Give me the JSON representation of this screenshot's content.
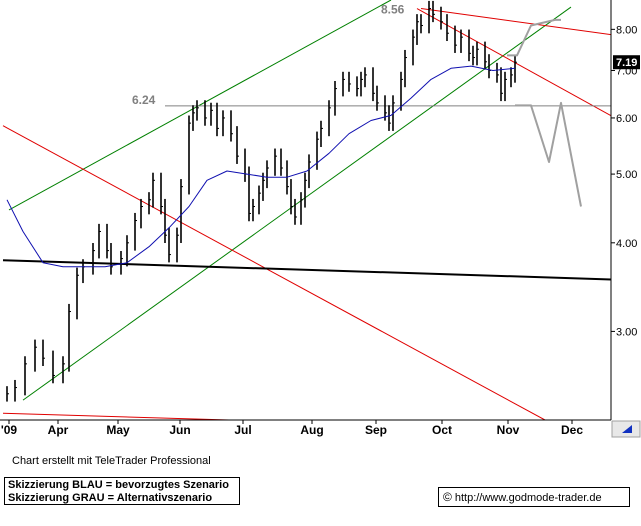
{
  "chart_data": {
    "type": "line",
    "title": "",
    "xlabel": "",
    "ylabel": "",
    "x_tick_labels": [
      "'09",
      "Apr",
      "May",
      "Jun",
      "Jul",
      "Aug",
      "Sep",
      "Oct",
      "Nov",
      "Dec"
    ],
    "y_tick_labels": [
      "3.00",
      "4.00",
      "5.00",
      "6.00",
      "7.00",
      "8.00"
    ],
    "y_scale": "log",
    "ylim": [
      2.25,
      8.8
    ],
    "grid": false,
    "current_price_label": "7.19",
    "annotations": [
      {
        "text": "6.24",
        "value": 6.24
      },
      {
        "text": "8.56",
        "value": 8.56
      }
    ],
    "series": [
      {
        "color": "#000000",
        "style": "ohlc-bars",
        "points": [
          [
            "2009-03-02",
            2.45
          ],
          [
            "2009-03-06",
            2.5
          ],
          [
            "2009-03-11",
            2.7
          ],
          [
            "2009-03-16",
            2.85
          ],
          [
            "2009-03-20",
            2.75
          ],
          [
            "2009-03-25",
            2.6
          ],
          [
            "2009-03-30",
            2.7
          ],
          [
            "2009-04-02",
            3.2
          ],
          [
            "2009-04-06",
            3.6
          ],
          [
            "2009-04-09",
            3.7
          ],
          [
            "2009-04-14",
            3.9
          ],
          [
            "2009-04-17",
            4.15
          ],
          [
            "2009-04-21",
            3.9
          ],
          [
            "2009-04-23",
            3.7
          ],
          [
            "2009-04-28",
            3.8
          ],
          [
            "2009-05-01",
            4.0
          ],
          [
            "2009-05-05",
            4.3
          ],
          [
            "2009-05-08",
            4.5
          ],
          [
            "2009-05-12",
            4.6
          ],
          [
            "2009-05-14",
            4.9
          ],
          [
            "2009-05-18",
            4.5
          ],
          [
            "2009-05-20",
            4.1
          ],
          [
            "2009-05-22",
            3.85
          ],
          [
            "2009-05-26",
            4.1
          ],
          [
            "2009-05-28",
            4.8
          ],
          [
            "2009-06-01",
            5.9
          ],
          [
            "2009-06-03",
            6.1
          ],
          [
            "2009-06-05",
            6.2
          ],
          [
            "2009-06-09",
            6.0
          ],
          [
            "2009-06-12",
            6.15
          ],
          [
            "2009-06-15",
            5.8
          ],
          [
            "2009-06-18",
            6.0
          ],
          [
            "2009-06-22",
            5.7
          ],
          [
            "2009-06-25",
            5.3
          ],
          [
            "2009-06-29",
            5.0
          ],
          [
            "2009-07-01",
            4.4
          ],
          [
            "2009-07-03",
            4.5
          ],
          [
            "2009-07-06",
            4.7
          ],
          [
            "2009-07-08",
            4.9
          ],
          [
            "2009-07-10",
            5.1
          ],
          [
            "2009-07-14",
            5.3
          ],
          [
            "2009-07-17",
            5.1
          ],
          [
            "2009-07-20",
            4.8
          ],
          [
            "2009-07-22",
            4.5
          ],
          [
            "2009-07-24",
            4.35
          ],
          [
            "2009-07-27",
            4.6
          ],
          [
            "2009-07-29",
            4.9
          ],
          [
            "2009-07-31",
            5.2
          ],
          [
            "2009-08-04",
            5.6
          ],
          [
            "2009-08-06",
            5.8
          ],
          [
            "2009-08-10",
            6.2
          ],
          [
            "2009-08-13",
            6.6
          ],
          [
            "2009-08-17",
            6.8
          ],
          [
            "2009-08-20",
            6.7
          ],
          [
            "2009-08-24",
            6.6
          ],
          [
            "2009-08-26",
            6.8
          ],
          [
            "2009-08-28",
            6.9
          ],
          [
            "2009-09-01",
            6.5
          ],
          [
            "2009-09-03",
            6.3
          ],
          [
            "2009-09-07",
            6.1
          ],
          [
            "2009-09-09",
            5.9
          ],
          [
            "2009-09-11",
            6.3
          ],
          [
            "2009-09-15",
            6.8
          ],
          [
            "2009-09-17",
            7.3
          ],
          [
            "2009-09-21",
            7.8
          ],
          [
            "2009-09-23",
            8.2
          ],
          [
            "2009-09-25",
            8.1
          ],
          [
            "2009-09-29",
            8.56
          ],
          [
            "2009-10-01",
            8.4
          ],
          [
            "2009-10-05",
            8.2
          ],
          [
            "2009-10-08",
            7.9
          ],
          [
            "2009-10-12",
            7.6
          ],
          [
            "2009-10-15",
            7.8
          ],
          [
            "2009-10-19",
            7.4
          ],
          [
            "2009-10-21",
            7.3
          ],
          [
            "2009-10-23",
            7.5
          ],
          [
            "2009-10-27",
            7.2
          ],
          [
            "2009-10-29",
            7.0
          ],
          [
            "2009-11-02",
            6.9
          ],
          [
            "2009-11-04",
            6.5
          ],
          [
            "2009-11-06",
            6.8
          ],
          [
            "2009-11-09",
            6.9
          ],
          [
            "2009-11-11",
            7.19
          ]
        ]
      },
      {
        "color": "#1010b0",
        "style": "moving-average",
        "points": [
          [
            "2009-03-02",
            4.6
          ],
          [
            "2009-03-10",
            4.15
          ],
          [
            "2009-03-20",
            3.75
          ],
          [
            "2009-03-30",
            3.7
          ],
          [
            "2009-04-10",
            3.7
          ],
          [
            "2009-04-20",
            3.7
          ],
          [
            "2009-05-01",
            3.75
          ],
          [
            "2009-05-12",
            3.95
          ],
          [
            "2009-05-22",
            4.2
          ],
          [
            "2009-06-01",
            4.5
          ],
          [
            "2009-06-10",
            4.9
          ],
          [
            "2009-06-20",
            5.05
          ],
          [
            "2009-06-30",
            5.0
          ],
          [
            "2009-07-10",
            4.95
          ],
          [
            "2009-07-20",
            4.95
          ],
          [
            "2009-07-30",
            5.05
          ],
          [
            "2009-08-10",
            5.35
          ],
          [
            "2009-08-20",
            5.7
          ],
          [
            "2009-08-31",
            5.95
          ],
          [
            "2009-09-10",
            6.05
          ],
          [
            "2009-09-20",
            6.4
          ],
          [
            "2009-09-30",
            6.8
          ],
          [
            "2009-10-10",
            7.05
          ],
          [
            "2009-10-20",
            7.1
          ],
          [
            "2009-10-31",
            7.0
          ],
          [
            "2009-11-11",
            7.05
          ]
        ]
      },
      {
        "color": "#a0a0a0",
        "style": "alternative-scenario-sketch",
        "points": [
          [
            "2009-11-11",
            6.25
          ],
          [
            "2009-11-19",
            6.25
          ],
          [
            "2009-11-28",
            5.2
          ],
          [
            "2009-12-04",
            6.3
          ],
          [
            "2009-12-14",
            4.5
          ]
        ]
      },
      {
        "color": "#a0a0a0",
        "style": "preferred-scenario-sketch",
        "points": [
          [
            "2009-11-07",
            7.35
          ],
          [
            "2009-11-12",
            7.35
          ],
          [
            "2009-11-19",
            8.1
          ],
          [
            "2009-12-01",
            8.25
          ],
          [
            "2009-12-04",
            8.25
          ]
        ]
      }
    ],
    "trend_lines": [
      {
        "color": "#008000",
        "from": [
          "2009-03-10",
          2.4
        ],
        "to": [
          "2009-12-09",
          8.6
        ]
      },
      {
        "color": "#008000",
        "from": [
          "2009-03-03",
          4.45
        ],
        "to": [
          "2009-09-10",
          8.8
        ]
      },
      {
        "color": "#e00000",
        "from": [
          "2009-02-28",
          5.85
        ],
        "to": [
          "2009-11-26",
          2.25
        ]
      },
      {
        "color": "#e00000",
        "from": [
          "2009-09-23",
          8.56
        ],
        "to": [
          "2009-12-31",
          6.0
        ]
      },
      {
        "color": "#e00000",
        "from": [
          "2009-09-25",
          8.56
        ],
        "to": [
          "2009-12-31",
          7.85
        ]
      },
      {
        "color": "#e00000",
        "from": [
          "2009-02-28",
          2.3
        ],
        "to": [
          "2009-06-21",
          2.25
        ]
      },
      {
        "color": "#000000",
        "from": [
          "2009-02-28",
          3.78
        ],
        "to": [
          "2009-12-31",
          3.55
        ]
      },
      {
        "color": "#808080",
        "from": [
          "2009-05-20",
          6.24
        ],
        "to": [
          "2009-12-31",
          6.24
        ]
      }
    ]
  },
  "footer": {
    "credit": "Chart erstellt mit TeleTrader Professional",
    "legend_line_1": "Skizzierung BLAU = bevorzugtes Szenario",
    "legend_line_2": "Skizzierung GRAU = Alternativszenario",
    "copyright_symbol": "©",
    "url": "http://www.godmode-trader.de"
  }
}
